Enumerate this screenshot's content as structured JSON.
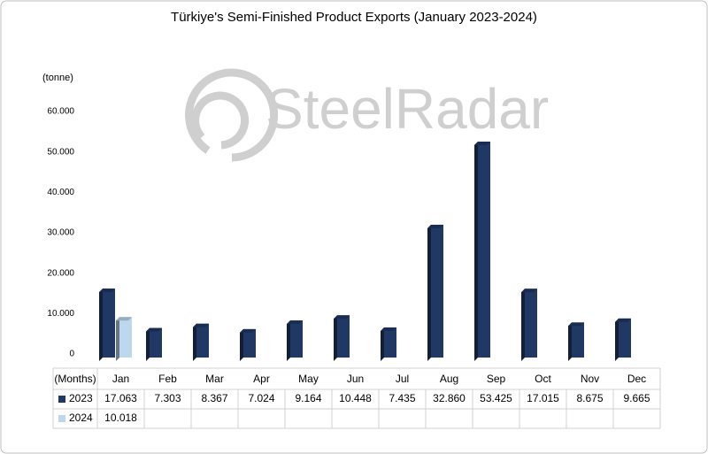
{
  "chart_data": {
    "type": "bar",
    "title": "Türkiye's Semi-Finished Product Exports (January 2023-2024)",
    "watermark": "SteelRadar",
    "y_label": "(tonne)",
    "x_label": "(Months)",
    "categories": [
      "Jan",
      "Feb",
      "Mar",
      "Apr",
      "May",
      "Jun",
      "Jul",
      "Aug",
      "Sep",
      "Oct",
      "Nov",
      "Dec"
    ],
    "series": [
      {
        "name": "2023",
        "color": "#203864",
        "values": [
          17063,
          7303,
          8367,
          7024,
          9164,
          10448,
          7435,
          32860,
          53425,
          17015,
          8675,
          9665
        ],
        "value_labels": [
          "17.063",
          "7.303",
          "8.367",
          "7.024",
          "9.164",
          "10.448",
          "7.435",
          "32.860",
          "53.425",
          "17.015",
          "8.675",
          "9.665"
        ]
      },
      {
        "name": "2024",
        "color": "#bdd7ee",
        "values": [
          10018,
          null,
          null,
          null,
          null,
          null,
          null,
          null,
          null,
          null,
          null,
          null
        ],
        "value_labels": [
          "10.018",
          null,
          null,
          null,
          null,
          null,
          null,
          null,
          null,
          null,
          null,
          null
        ]
      }
    ],
    "ylim": [
      0,
      60000
    ],
    "yticks": [
      0,
      {
        "value": 10000,
        "label": "10.000"
      },
      {
        "value": 20000,
        "label": "20.000"
      },
      {
        "value": 30000,
        "label": "30.000"
      },
      {
        "value": 40000,
        "label": "40.000"
      },
      {
        "value": 50000,
        "label": "50.000"
      },
      {
        "value": 60000,
        "label": "60.000"
      }
    ],
    "grid": false
  }
}
